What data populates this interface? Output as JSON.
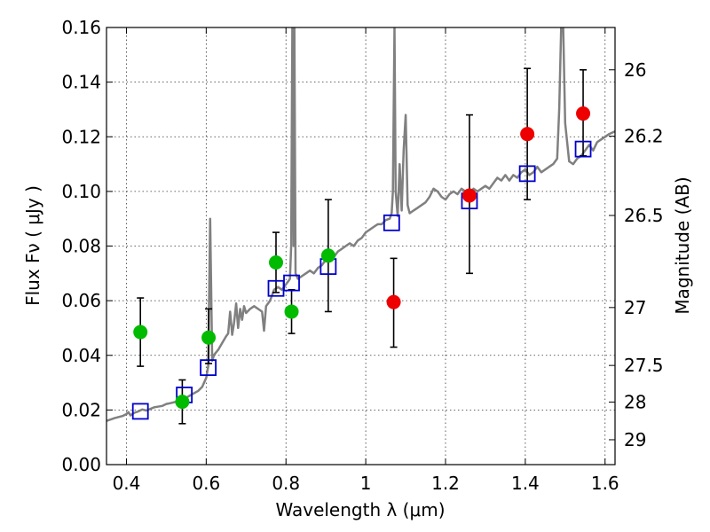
{
  "chart_data": {
    "type": "scatter",
    "xlabel": "Wavelength  λ (μm)",
    "ylabel": "Flux  Fν  ( μJy )",
    "y2label": "Magnitude (AB)",
    "xlim": [
      0.35,
      1.625
    ],
    "ylim": [
      0,
      0.16
    ],
    "grid": true,
    "x_ticks": [
      0.4,
      0.6,
      0.8,
      1.0,
      1.2,
      1.4,
      1.6
    ],
    "x_tick_labels": [
      "0.4",
      "0.6",
      "0.8",
      "1",
      "1.2",
      "1.4",
      "1.6"
    ],
    "y_ticks": [
      0,
      0.02,
      0.04,
      0.06,
      0.08,
      0.1,
      0.12,
      0.14,
      0.16
    ],
    "y_tick_labels": [
      "0.00",
      "0.02",
      "0.04",
      "0.06",
      "0.08",
      "0.10",
      "0.12",
      "0.14",
      "0.16"
    ],
    "mag_ticks": [
      {
        "label": "26",
        "flux": 0.1445
      },
      {
        "label": "26.2",
        "flux": 0.1202
      },
      {
        "label": "26.5",
        "flux": 0.0912
      },
      {
        "label": "27",
        "flux": 0.0575
      },
      {
        "label": "27.5",
        "flux": 0.0363
      },
      {
        "label": "28",
        "flux": 0.0229
      },
      {
        "label": "29",
        "flux": 0.0091
      }
    ],
    "series": [
      {
        "name": "model spectrum",
        "kind": "line",
        "color": "#808080",
        "points": [
          [
            0.35,
            0.016
          ],
          [
            0.37,
            0.017
          ],
          [
            0.39,
            0.0178
          ],
          [
            0.4,
            0.0185
          ],
          [
            0.405,
            0.0192
          ],
          [
            0.41,
            0.018
          ],
          [
            0.42,
            0.019
          ],
          [
            0.43,
            0.0195
          ],
          [
            0.44,
            0.0202
          ],
          [
            0.45,
            0.0198
          ],
          [
            0.47,
            0.021
          ],
          [
            0.49,
            0.0215
          ],
          [
            0.5,
            0.0222
          ],
          [
            0.51,
            0.0225
          ],
          [
            0.53,
            0.0232
          ],
          [
            0.55,
            0.0245
          ],
          [
            0.57,
            0.0262
          ],
          [
            0.58,
            0.027
          ],
          [
            0.59,
            0.0285
          ],
          [
            0.6,
            0.0318
          ],
          [
            0.605,
            0.036
          ],
          [
            0.61,
            0.09
          ],
          [
            0.615,
            0.038
          ],
          [
            0.62,
            0.0402
          ],
          [
            0.63,
            0.042
          ],
          [
            0.64,
            0.0445
          ],
          [
            0.65,
            0.047
          ],
          [
            0.655,
            0.048
          ],
          [
            0.66,
            0.056
          ],
          [
            0.665,
            0.0475
          ],
          [
            0.67,
            0.052
          ],
          [
            0.675,
            0.059
          ],
          [
            0.68,
            0.05
          ],
          [
            0.685,
            0.057
          ],
          [
            0.69,
            0.053
          ],
          [
            0.695,
            0.058
          ],
          [
            0.7,
            0.0555
          ],
          [
            0.71,
            0.057
          ],
          [
            0.72,
            0.058
          ],
          [
            0.73,
            0.057
          ],
          [
            0.74,
            0.056
          ],
          [
            0.745,
            0.049
          ],
          [
            0.75,
            0.058
          ],
          [
            0.76,
            0.06
          ],
          [
            0.77,
            0.064
          ],
          [
            0.78,
            0.065
          ],
          [
            0.79,
            0.064
          ],
          [
            0.8,
            0.066
          ],
          [
            0.805,
            0.067
          ],
          [
            0.81,
            0.068
          ],
          [
            0.813,
            0.08
          ],
          [
            0.816,
            0.16
          ],
          [
            0.819,
            0.08
          ],
          [
            0.821,
            0.16
          ],
          [
            0.824,
            0.07
          ],
          [
            0.83,
            0.068
          ],
          [
            0.84,
            0.069
          ],
          [
            0.85,
            0.07
          ],
          [
            0.86,
            0.071
          ],
          [
            0.87,
            0.07
          ],
          [
            0.88,
            0.072
          ],
          [
            0.89,
            0.073
          ],
          [
            0.9,
            0.075
          ],
          [
            0.91,
            0.076
          ],
          [
            0.92,
            0.076
          ],
          [
            0.93,
            0.078
          ],
          [
            0.94,
            0.079
          ],
          [
            0.95,
            0.08
          ],
          [
            0.96,
            0.081
          ],
          [
            0.97,
            0.08
          ],
          [
            0.98,
            0.082
          ],
          [
            0.99,
            0.083
          ],
          [
            1.0,
            0.085
          ],
          [
            1.01,
            0.086
          ],
          [
            1.02,
            0.087
          ],
          [
            1.03,
            0.088
          ],
          [
            1.04,
            0.088
          ],
          [
            1.05,
            0.0895
          ],
          [
            1.06,
            0.09
          ],
          [
            1.065,
            0.092
          ],
          [
            1.068,
            0.1
          ],
          [
            1.072,
            0.16
          ],
          [
            1.075,
            0.1
          ],
          [
            1.08,
            0.091
          ],
          [
            1.085,
            0.11
          ],
          [
            1.09,
            0.093
          ],
          [
            1.095,
            0.115
          ],
          [
            1.1,
            0.128
          ],
          [
            1.105,
            0.095
          ],
          [
            1.11,
            0.092
          ],
          [
            1.12,
            0.093
          ],
          [
            1.13,
            0.094
          ],
          [
            1.14,
            0.095
          ],
          [
            1.15,
            0.096
          ],
          [
            1.16,
            0.098
          ],
          [
            1.17,
            0.101
          ],
          [
            1.18,
            0.1
          ],
          [
            1.19,
            0.098
          ],
          [
            1.2,
            0.097
          ],
          [
            1.21,
            0.099
          ],
          [
            1.22,
            0.1
          ],
          [
            1.23,
            0.099
          ],
          [
            1.24,
            0.101
          ],
          [
            1.25,
            0.1
          ],
          [
            1.26,
            0.099
          ],
          [
            1.27,
            0.101
          ],
          [
            1.28,
            0.1
          ],
          [
            1.29,
            0.101
          ],
          [
            1.3,
            0.102
          ],
          [
            1.31,
            0.101
          ],
          [
            1.32,
            0.103
          ],
          [
            1.33,
            0.105
          ],
          [
            1.34,
            0.104
          ],
          [
            1.35,
            0.106
          ],
          [
            1.36,
            0.104
          ],
          [
            1.37,
            0.106
          ],
          [
            1.38,
            0.105
          ],
          [
            1.39,
            0.107
          ],
          [
            1.4,
            0.108
          ],
          [
            1.41,
            0.106
          ],
          [
            1.42,
            0.107
          ],
          [
            1.43,
            0.109
          ],
          [
            1.44,
            0.107
          ],
          [
            1.45,
            0.108
          ],
          [
            1.46,
            0.109
          ],
          [
            1.47,
            0.11
          ],
          [
            1.48,
            0.112
          ],
          [
            1.485,
            0.13
          ],
          [
            1.49,
            0.16
          ],
          [
            1.495,
            0.16
          ],
          [
            1.5,
            0.125
          ],
          [
            1.51,
            0.111
          ],
          [
            1.52,
            0.11
          ],
          [
            1.53,
            0.112
          ],
          [
            1.54,
            0.113
          ],
          [
            1.55,
            0.115
          ],
          [
            1.56,
            0.117
          ],
          [
            1.57,
            0.115
          ],
          [
            1.58,
            0.118
          ],
          [
            1.59,
            0.119
          ],
          [
            1.6,
            0.12
          ],
          [
            1.61,
            0.121
          ],
          [
            1.625,
            0.122
          ]
        ]
      },
      {
        "name": "model photometry",
        "kind": "square",
        "color": "#0000cc",
        "x": [
          0.435,
          0.545,
          0.605,
          0.775,
          0.814,
          0.906,
          1.065,
          1.26,
          1.405,
          1.545
        ],
        "y": [
          0.0195,
          0.0255,
          0.0355,
          0.0645,
          0.0665,
          0.0725,
          0.0885,
          0.0965,
          0.1065,
          0.1155
        ]
      },
      {
        "name": "observed (green)",
        "kind": "circle",
        "color": "#00bb00",
        "x": [
          0.435,
          0.54,
          0.606,
          0.775,
          0.814,
          0.906
        ],
        "y": [
          0.0485,
          0.023,
          0.0465,
          0.074,
          0.056,
          0.0765
        ],
        "yerr_lo": [
          0.036,
          0.015,
          0.037,
          0.063,
          0.048,
          0.056
        ],
        "yerr_hi": [
          0.061,
          0.031,
          0.057,
          0.085,
          0.064,
          0.097
        ]
      },
      {
        "name": "observed (red)",
        "kind": "circle",
        "color": "#ee0000",
        "x": [
          1.07,
          1.26,
          1.405,
          1.545
        ],
        "y": [
          0.0595,
          0.0985,
          0.121,
          0.1285
        ],
        "yerr_lo": [
          0.043,
          0.07,
          0.097,
          0.113
        ],
        "yerr_hi": [
          0.0755,
          0.128,
          0.145,
          0.1445
        ]
      }
    ]
  }
}
